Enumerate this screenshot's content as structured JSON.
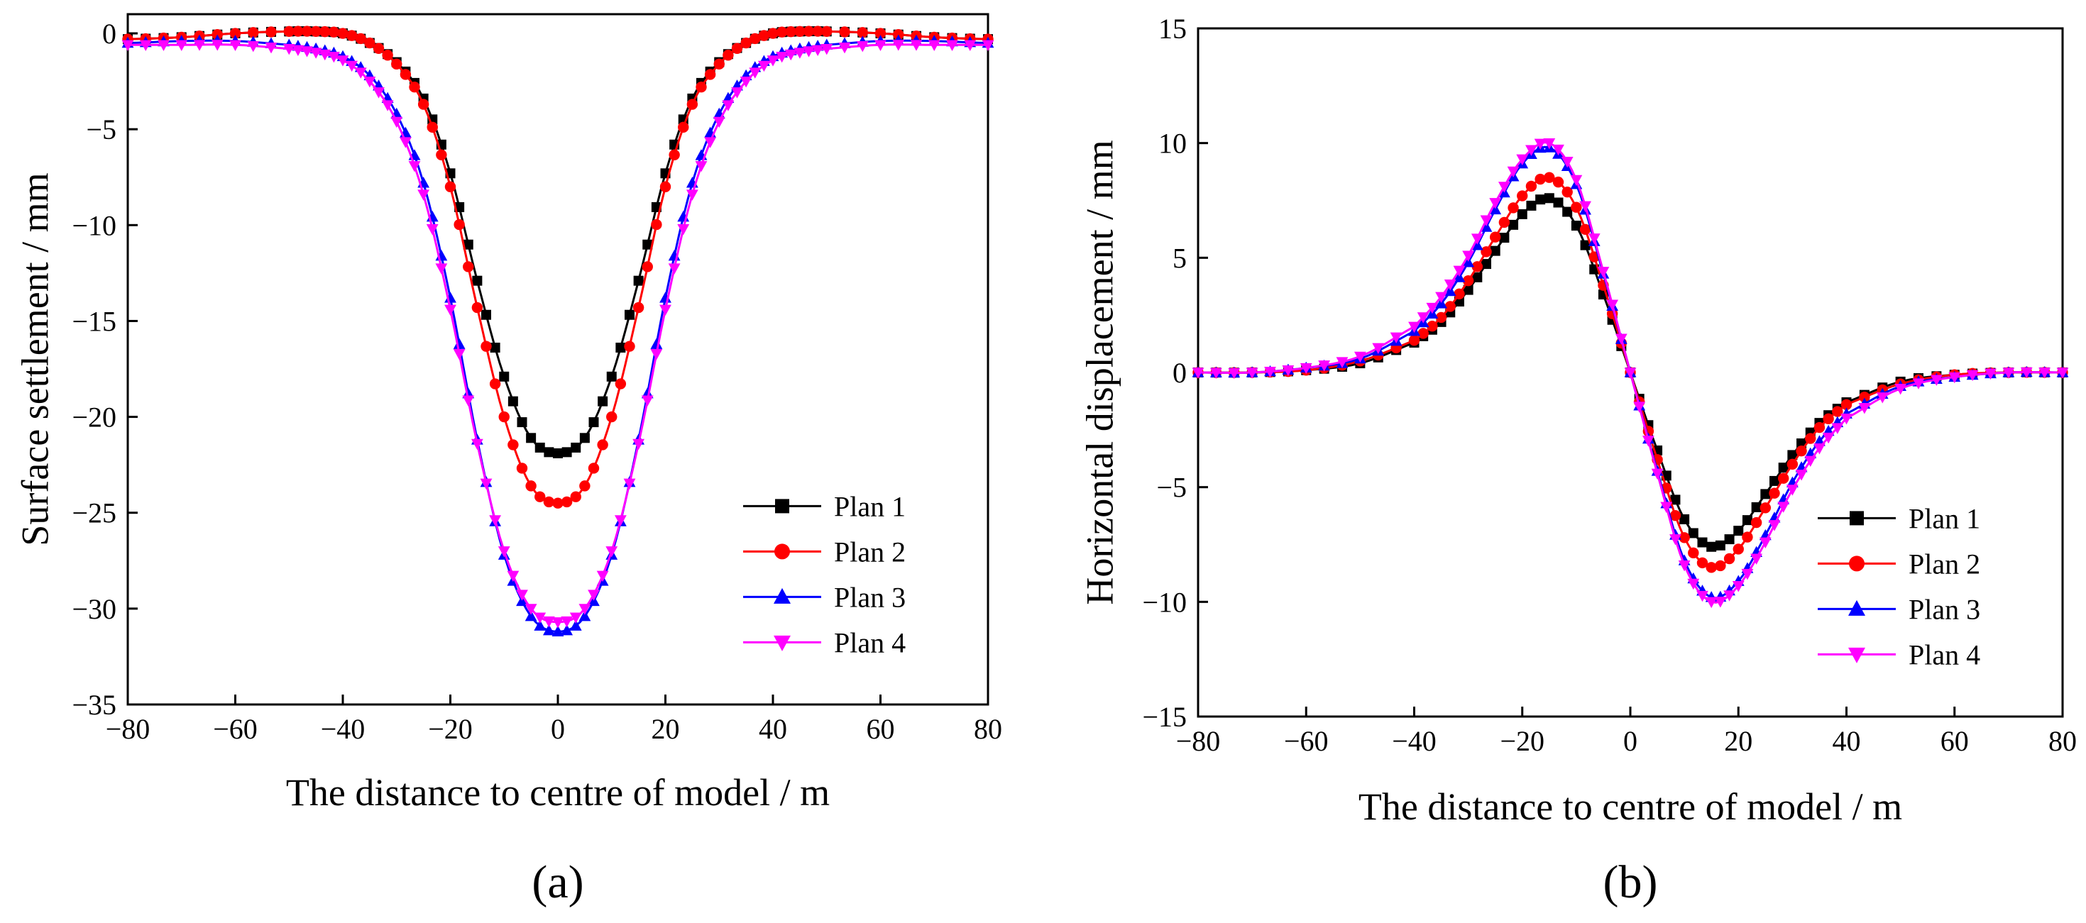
{
  "chart_data": [
    {
      "type": "line",
      "panel_label": "(a)",
      "xlabel": "The distance to centre of model / m",
      "ylabel": "Surface settlement / mm",
      "xlim": [
        -80,
        80
      ],
      "ylim": [
        -35,
        1
      ],
      "xticks": [
        -80,
        -60,
        -40,
        -20,
        0,
        20,
        40,
        60,
        80
      ],
      "xtick_labels": [
        "−80",
        "−60",
        "−40",
        "−20",
        "0",
        "20",
        "40",
        "60",
        "80"
      ],
      "yticks": [
        0,
        -5,
        -10,
        -15,
        -20,
        -25,
        -30,
        -35
      ],
      "ytick_labels": [
        "0",
        "−5",
        "−10",
        "−15",
        "−20",
        "−25",
        "−30",
        "−35"
      ],
      "legend_position": "bottom-right",
      "x": [
        -80,
        -70,
        -60,
        -50,
        -45,
        -40,
        -35,
        -30,
        -25,
        -20,
        -15,
        -10,
        -5,
        0,
        5,
        10,
        15,
        20,
        25,
        30,
        35,
        40,
        45,
        50,
        60,
        70,
        80
      ],
      "series": [
        {
          "name": "Plan 1",
          "color": "#000000",
          "marker": "square",
          "values": [
            -0.3,
            -0.2,
            0.0,
            0.1,
            0.1,
            0.0,
            -0.5,
            -1.5,
            -3.4,
            -7.3,
            -12.9,
            -17.9,
            -21.1,
            -21.9,
            -21.1,
            -17.9,
            -12.9,
            -7.3,
            -3.4,
            -1.5,
            -0.5,
            0.0,
            0.1,
            0.1,
            0.0,
            -0.2,
            -0.3
          ]
        },
        {
          "name": "Plan 2",
          "color": "#ff0000",
          "marker": "circle",
          "values": [
            -0.3,
            -0.2,
            0.0,
            0.1,
            0.1,
            0.0,
            -0.5,
            -1.6,
            -3.7,
            -8.0,
            -14.3,
            -20.0,
            -23.6,
            -24.5,
            -23.6,
            -20.0,
            -14.3,
            -8.0,
            -3.7,
            -1.6,
            -0.5,
            0.0,
            0.1,
            0.1,
            0.0,
            -0.2,
            -0.3
          ]
        },
        {
          "name": "Plan 3",
          "color": "#0000ff",
          "marker": "triangle-up",
          "values": [
            -0.5,
            -0.4,
            -0.4,
            -0.6,
            -0.8,
            -1.2,
            -2.2,
            -4.2,
            -7.8,
            -13.8,
            -21.2,
            -27.2,
            -30.4,
            -31.2,
            -30.4,
            -27.2,
            -21.2,
            -13.8,
            -7.8,
            -4.2,
            -2.2,
            -1.2,
            -0.8,
            -0.6,
            -0.4,
            -0.4,
            -0.5
          ]
        },
        {
          "name": "Plan 4",
          "color": "#ff00ff",
          "marker": "triangle-down",
          "values": [
            -0.6,
            -0.6,
            -0.6,
            -0.8,
            -1.0,
            -1.4,
            -2.5,
            -4.6,
            -8.4,
            -14.4,
            -21.4,
            -27.0,
            -30.0,
            -30.7,
            -30.0,
            -27.0,
            -21.4,
            -14.4,
            -8.4,
            -4.6,
            -2.5,
            -1.4,
            -1.0,
            -0.8,
            -0.6,
            -0.6,
            -0.6
          ]
        }
      ]
    },
    {
      "type": "line",
      "panel_label": "(b)",
      "xlabel": "The distance to centre of model / m",
      "ylabel": "Horizontal displacement / mm",
      "xlim": [
        -80,
        80
      ],
      "ylim": [
        -15,
        15
      ],
      "xticks": [
        -80,
        -60,
        -40,
        -20,
        0,
        20,
        40,
        60,
        80
      ],
      "xtick_labels": [
        "−80",
        "−60",
        "−40",
        "−20",
        "0",
        "20",
        "40",
        "60",
        "80"
      ],
      "yticks": [
        15,
        10,
        5,
        0,
        -5,
        -10,
        -15
      ],
      "ytick_labels": [
        "15",
        "10",
        "5",
        "0",
        "−5",
        "−10",
        "−15"
      ],
      "legend_position": "bottom-right",
      "x": [
        -80,
        -70,
        -60,
        -50,
        -40,
        -35,
        -30,
        -25,
        -20,
        -15,
        -10,
        -5,
        0,
        5,
        10,
        15,
        20,
        25,
        30,
        35,
        40,
        50,
        60,
        70,
        80
      ],
      "series": [
        {
          "name": "Plan 1",
          "color": "#000000",
          "marker": "square",
          "values": [
            0.0,
            0.0,
            0.1,
            0.4,
            1.3,
            2.2,
            3.6,
            5.3,
            6.9,
            7.6,
            6.4,
            3.4,
            0.0,
            -3.4,
            -6.4,
            -7.6,
            -6.9,
            -5.3,
            -3.6,
            -2.2,
            -1.3,
            -0.4,
            -0.1,
            0.0,
            0.0
          ]
        },
        {
          "name": "Plan 2",
          "color": "#ff0000",
          "marker": "circle",
          "values": [
            0.0,
            0.0,
            0.1,
            0.5,
            1.4,
            2.4,
            4.0,
            5.9,
            7.7,
            8.5,
            7.2,
            3.8,
            0.0,
            -3.8,
            -7.2,
            -8.5,
            -7.7,
            -5.9,
            -4.0,
            -2.4,
            -1.4,
            -0.5,
            -0.1,
            0.0,
            0.0
          ]
        },
        {
          "name": "Plan 3",
          "color": "#0000ff",
          "marker": "triangle-up",
          "values": [
            0.0,
            0.0,
            0.2,
            0.6,
            1.8,
            3.0,
            4.8,
            7.1,
            9.1,
            9.8,
            8.2,
            4.3,
            0.0,
            -4.3,
            -8.2,
            -9.8,
            -9.1,
            -7.1,
            -4.8,
            -3.0,
            -1.8,
            -0.6,
            -0.2,
            0.0,
            0.0
          ]
        },
        {
          "name": "Plan 4",
          "color": "#ff00ff",
          "marker": "triangle-down",
          "values": [
            0.0,
            0.0,
            0.2,
            0.7,
            2.0,
            3.3,
            5.1,
            7.4,
            9.3,
            10.0,
            8.4,
            4.4,
            0.0,
            -4.4,
            -8.4,
            -10.0,
            -9.3,
            -7.4,
            -5.1,
            -3.3,
            -2.0,
            -0.7,
            -0.2,
            0.0,
            0.0
          ]
        }
      ]
    }
  ]
}
